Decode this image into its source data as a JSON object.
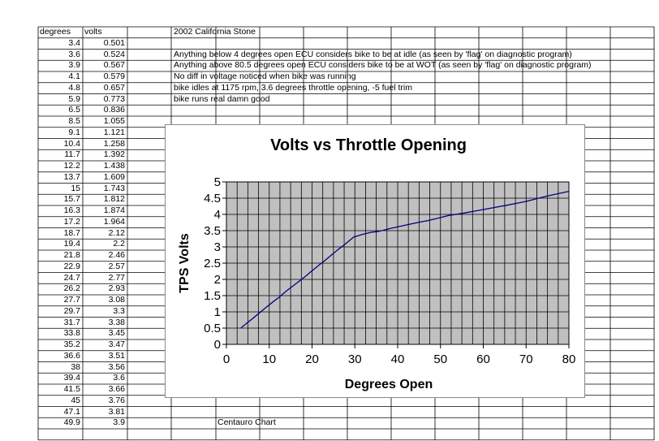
{
  "spreadsheet": {
    "headers": {
      "degrees": "degrees",
      "volts": "volts"
    },
    "rows": [
      [
        "3.4",
        "0.501"
      ],
      [
        "3.6",
        "0.524"
      ],
      [
        "3.9",
        "0.567"
      ],
      [
        "4.1",
        "0.579"
      ],
      [
        "4.8",
        "0.657"
      ],
      [
        "5.9",
        "0.773"
      ],
      [
        "6.5",
        "0.836"
      ],
      [
        "8.5",
        "1.055"
      ],
      [
        "9.1",
        "1.121"
      ],
      [
        "10.4",
        "1.258"
      ],
      [
        "11.7",
        "1.392"
      ],
      [
        "12.2",
        "1.438"
      ],
      [
        "13.7",
        "1.609"
      ],
      [
        "15",
        "1.743"
      ],
      [
        "15.7",
        "1.812"
      ],
      [
        "16.3",
        "1.874"
      ],
      [
        "17.2",
        "1.964"
      ],
      [
        "18.7",
        "2.12"
      ],
      [
        "19.4",
        "2.2"
      ],
      [
        "21.8",
        "2.46"
      ],
      [
        "22.9",
        "2.57"
      ],
      [
        "24.7",
        "2.77"
      ],
      [
        "26.2",
        "2.93"
      ],
      [
        "27.7",
        "3.08"
      ],
      [
        "29.7",
        "3.3"
      ],
      [
        "31.7",
        "3.38"
      ],
      [
        "33.8",
        "3.45"
      ],
      [
        "35.2",
        "3.47"
      ],
      [
        "36.6",
        "3.51"
      ],
      [
        "38",
        "3.56"
      ],
      [
        "39.4",
        "3.6"
      ],
      [
        "41.5",
        "3.66"
      ],
      [
        "45",
        "3.76"
      ],
      [
        "47.1",
        "3.81"
      ],
      [
        "49.9",
        "3.9"
      ]
    ],
    "notes": [
      "2002 California Stone",
      "",
      "Anything below 4 degrees open ECU considers bike to be at idle (as seen by 'flag' on diagnostic program)",
      "Anything above 80.5 degrees open ECU considers bike to be at WOT (as seen by 'flag' on diagnostic program)",
      "No diff in voltage noticed when bike was running",
      "bike idles at 1175 rpm,  3.6 degrees throttle opening, -5 fuel trim",
      "bike runs real damn good"
    ],
    "footer_label": "Centauro Chart"
  },
  "chart_data": {
    "type": "line",
    "title": "Volts vs Throttle Opening",
    "xlabel": "Degrees Open",
    "ylabel": "TPS Volts",
    "xlim": [
      0,
      80
    ],
    "ylim": [
      0,
      5
    ],
    "x_ticks": [
      "0",
      "10",
      "20",
      "30",
      "40",
      "50",
      "60",
      "70",
      "80"
    ],
    "y_ticks": [
      "0",
      "0.5",
      "1",
      "1.5",
      "2",
      "2.5",
      "3",
      "3.5",
      "4",
      "4.5",
      "5"
    ],
    "grid": true,
    "plot_background": "#c0c0c0",
    "line_color": "#000080",
    "series": [
      {
        "x": [
          3.4,
          3.6,
          3.9,
          4.1,
          4.8,
          5.9,
          6.5,
          8.5,
          9.1,
          10.4,
          11.7,
          12.2,
          13.7,
          15,
          15.7,
          16.3,
          17.2,
          18.7,
          19.4,
          21.8,
          22.9,
          24.7,
          26.2,
          27.7,
          29.7,
          31.7,
          33.8,
          35.2,
          36.6,
          38,
          39.4,
          41.5,
          45,
          47.1,
          49.9,
          52,
          55,
          60,
          65,
          70,
          75,
          80
        ],
        "y": [
          0.501,
          0.524,
          0.567,
          0.579,
          0.657,
          0.773,
          0.836,
          1.055,
          1.121,
          1.258,
          1.392,
          1.438,
          1.609,
          1.743,
          1.812,
          1.874,
          1.964,
          2.12,
          2.2,
          2.46,
          2.57,
          2.77,
          2.93,
          3.08,
          3.3,
          3.38,
          3.45,
          3.47,
          3.51,
          3.56,
          3.6,
          3.66,
          3.76,
          3.81,
          3.9,
          3.97,
          4.03,
          4.15,
          4.27,
          4.4,
          4.57,
          4.71
        ]
      }
    ]
  }
}
